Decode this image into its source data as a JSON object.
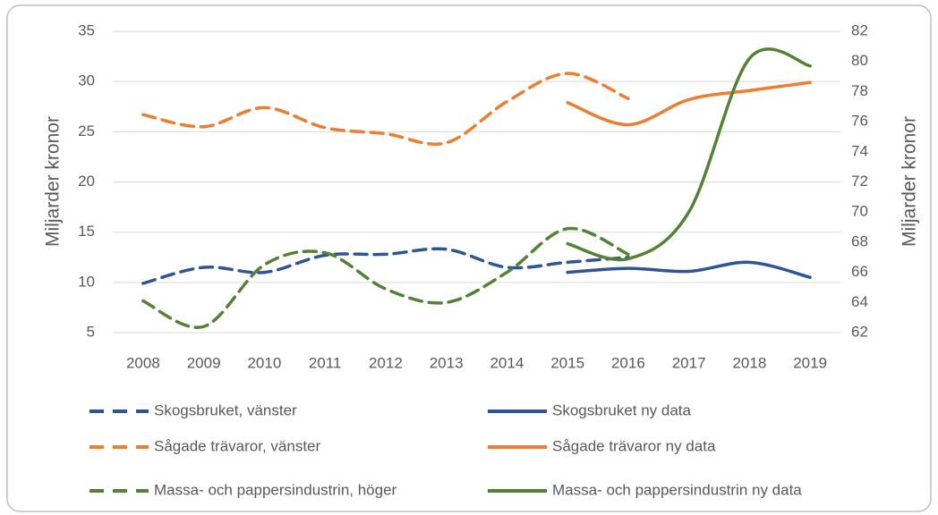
{
  "chart_data": {
    "type": "line",
    "y_label": "Miljarder kronor",
    "y2_label": "Miljarder kronor",
    "categories": [
      "2008",
      "2009",
      "2010",
      "2011",
      "2012",
      "2013",
      "2014",
      "2015",
      "2016",
      "2017",
      "2018",
      "2019"
    ],
    "ylim": [
      5,
      35
    ],
    "yticks": [
      5,
      10,
      15,
      20,
      25,
      30,
      35
    ],
    "y2lim": [
      62,
      82
    ],
    "y2ticks": [
      62,
      64,
      66,
      68,
      70,
      72,
      74,
      76,
      78,
      80,
      82
    ],
    "grid": true,
    "series": [
      {
        "name": "Skogsbruket, vänster",
        "color": "#2f5597",
        "dashed": true,
        "values": [
          9.9,
          11.5,
          11.0,
          12.7,
          12.8,
          13.3,
          11.5,
          12.0,
          12.5,
          null,
          null,
          null
        ]
      },
      {
        "name": "Skogsbruket ny data",
        "color": "#2f5597",
        "dashed": false,
        "values": [
          null,
          null,
          null,
          null,
          null,
          null,
          null,
          11.0,
          11.4,
          11.1,
          12.0,
          10.5
        ]
      },
      {
        "name": "Sågade trävaror, vänster",
        "color": "#ed7d31",
        "dashed": true,
        "values": [
          26.7,
          25.5,
          27.4,
          25.4,
          24.8,
          23.9,
          28.0,
          30.8,
          28.3,
          null,
          null,
          null
        ]
      },
      {
        "name": "Sågade trävaror ny data",
        "color": "#ed7d31",
        "dashed": false,
        "values": [
          null,
          null,
          null,
          null,
          null,
          null,
          null,
          27.9,
          25.7,
          28.2,
          29.1,
          29.9
        ]
      },
      {
        "name": "Massa- och pappersindustrin, höger",
        "color": "#548235",
        "dashed": true,
        "axis": "y2",
        "values": [
          64.1,
          62.4,
          66.5,
          67.3,
          64.9,
          64.0,
          66.0,
          68.9,
          67.2,
          null,
          null,
          null
        ]
      },
      {
        "name": "Massa- och pappersindustrin ny data",
        "color": "#548235",
        "dashed": false,
        "axis": "y2",
        "values": [
          null,
          null,
          null,
          null,
          null,
          null,
          null,
          67.9,
          66.9,
          70.0,
          80.2,
          79.7
        ]
      }
    ]
  }
}
